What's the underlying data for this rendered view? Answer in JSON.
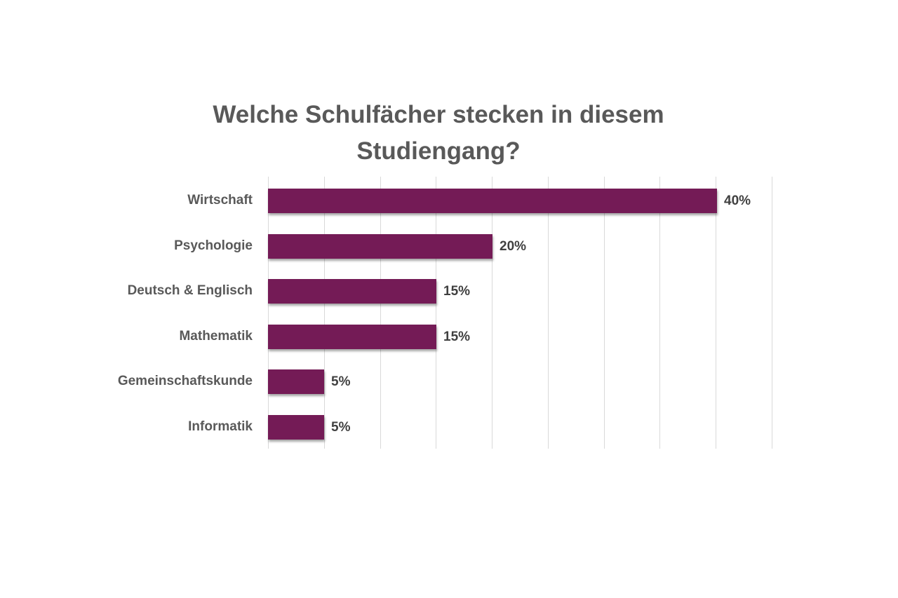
{
  "chart_data": {
    "type": "bar",
    "orientation": "horizontal",
    "title": "Welche Schulfächer stecken in diesem Studiengang?",
    "title_lines": [
      "Welche Schulfächer stecken in diesem",
      "Studiengang?"
    ],
    "categories": [
      "Wirtschaft",
      "Psychologie",
      "Deutsch & Englisch",
      "Mathematik",
      "Gemeinschaftskunde",
      "Informatik"
    ],
    "values": [
      40,
      20,
      15,
      15,
      5,
      5
    ],
    "value_labels": [
      "40%",
      "20%",
      "15%",
      "15%",
      "5%",
      "5%"
    ],
    "unit": "%",
    "xlabel": "",
    "ylabel": "",
    "xlim": [
      0,
      45
    ],
    "grid_step": 5,
    "grid": "vertical",
    "axis_tick_labels_visible": false,
    "legend": "none",
    "bar_color": "#741b56"
  },
  "colors": {
    "bar": "#741b56",
    "title": "#595959",
    "category_text": "#595959",
    "value_text": "#404040",
    "grid": "#d9d9d9",
    "background": "#ffffff"
  }
}
